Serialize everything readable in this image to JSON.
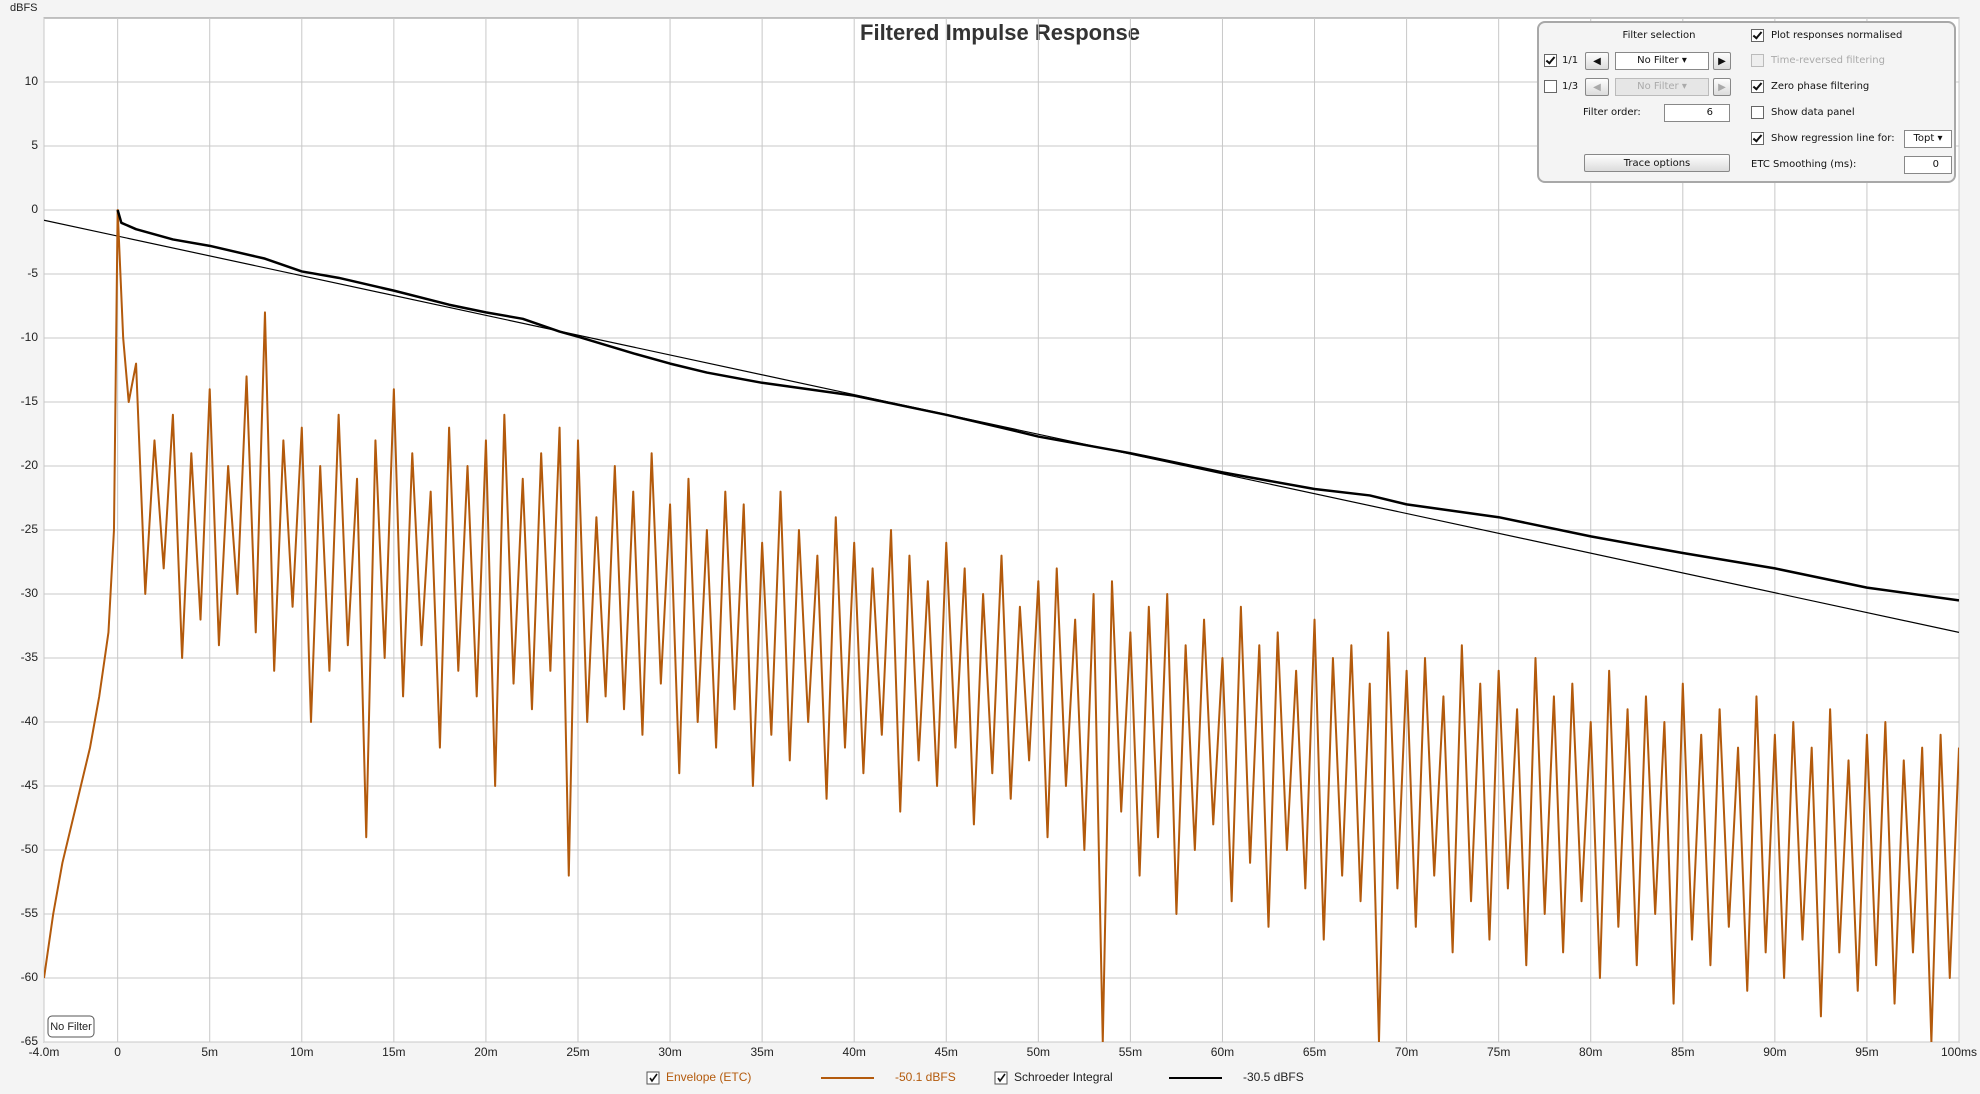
{
  "chart_data": {
    "type": "line",
    "title": "Filtered Impulse Response",
    "ylabel": "dBFS",
    "xlim": [
      -4,
      100
    ],
    "ylim": [
      -65,
      15
    ],
    "xticks": [
      {
        "value": -4,
        "label": "-4.0m"
      },
      0,
      {
        "value": 5,
        "label": "5m"
      },
      {
        "value": 10,
        "label": "10m"
      },
      {
        "value": 15,
        "label": "15m"
      },
      {
        "value": 20,
        "label": "20m"
      },
      {
        "value": 25,
        "label": "25m"
      },
      {
        "value": 30,
        "label": "30m"
      },
      {
        "value": 35,
        "label": "35m"
      },
      {
        "value": 40,
        "label": "40m"
      },
      {
        "value": 45,
        "label": "45m"
      },
      {
        "value": 50,
        "label": "50m"
      },
      {
        "value": 55,
        "label": "55m"
      },
      {
        "value": 60,
        "label": "60m"
      },
      {
        "value": 65,
        "label": "65m"
      },
      {
        "value": 70,
        "label": "70m"
      },
      {
        "value": 75,
        "label": "75m"
      },
      {
        "value": 80,
        "label": "80m"
      },
      {
        "value": 85,
        "label": "85m"
      },
      {
        "value": 90,
        "label": "90m"
      },
      {
        "value": 95,
        "label": "95m"
      },
      {
        "value": 100,
        "label": "100ms"
      }
    ],
    "yticks": [
      10,
      5,
      0,
      -5,
      -10,
      -15,
      -20,
      -25,
      -30,
      -35,
      -40,
      -45,
      -50,
      -55,
      -60,
      -65
    ],
    "grid": true,
    "plot_label": "No Filter",
    "series": [
      {
        "name": "Envelope (ETC)",
        "color": "#b35a0c",
        "legend_value": "-50.1 dBFS",
        "x": [
          -4,
          -3.5,
          -3,
          -2.5,
          -2,
          -1.5,
          -1,
          -0.5,
          -0.2,
          0,
          0.3,
          0.6,
          1,
          1.5,
          2,
          2.5,
          3,
          3.5,
          4,
          4.5,
          5,
          5.5,
          6,
          6.5,
          7,
          7.5,
          8,
          8.5,
          9,
          9.5,
          10,
          10.5,
          11,
          11.5,
          12,
          12.5,
          13,
          13.5,
          14,
          14.5,
          15,
          15.5,
          16,
          16.5,
          17,
          17.5,
          18,
          18.5,
          19,
          19.5,
          20,
          20.5,
          21,
          21.5,
          22,
          22.5,
          23,
          23.5,
          24,
          24.5,
          25,
          25.5,
          26,
          26.5,
          27,
          27.5,
          28,
          28.5,
          29,
          29.5,
          30,
          30.5,
          31,
          31.5,
          32,
          32.5,
          33,
          33.5,
          34,
          34.5,
          35,
          35.5,
          36,
          36.5,
          37,
          37.5,
          38,
          38.5,
          39,
          39.5,
          40,
          40.5,
          41,
          41.5,
          42,
          42.5,
          43,
          43.5,
          44,
          44.5,
          45,
          45.5,
          46,
          46.5,
          47,
          47.5,
          48,
          48.5,
          49,
          49.5,
          50,
          50.5,
          51,
          51.5,
          52,
          52.5,
          53,
          53.5,
          54,
          54.5,
          55,
          55.5,
          56,
          56.5,
          57,
          57.5,
          58,
          58.5,
          59,
          59.5,
          60,
          60.5,
          61,
          61.5,
          62,
          62.5,
          63,
          63.5,
          64,
          64.5,
          65,
          65.5,
          66,
          66.5,
          67,
          67.5,
          68,
          68.5,
          69,
          69.5,
          70,
          70.5,
          71,
          71.5,
          72,
          72.5,
          73,
          73.5,
          74,
          74.5,
          75,
          75.5,
          76,
          76.5,
          77,
          77.5,
          78,
          78.5,
          79,
          79.5,
          80,
          80.5,
          81,
          81.5,
          82,
          82.5,
          83,
          83.5,
          84,
          84.5,
          85,
          85.5,
          86,
          86.5,
          87,
          87.5,
          88,
          88.5,
          89,
          89.5,
          90,
          90.5,
          91,
          91.5,
          92,
          92.5,
          93,
          93.5,
          94,
          94.5,
          95,
          95.5,
          96,
          96.5,
          97,
          97.5,
          98,
          98.5,
          99,
          99.5,
          100
        ],
        "values": [
          -60,
          -55,
          -51,
          -48,
          -45,
          -42,
          -38,
          -33,
          -25,
          0,
          -10,
          -15,
          -12,
          -30,
          -18,
          -28,
          -16,
          -35,
          -19,
          -32,
          -14,
          -34,
          -20,
          -30,
          -13,
          -33,
          -8,
          -36,
          -18,
          -31,
          -17,
          -40,
          -20,
          -36,
          -16,
          -34,
          -21,
          -49,
          -18,
          -35,
          -14,
          -38,
          -19,
          -34,
          -22,
          -42,
          -17,
          -36,
          -20,
          -38,
          -18,
          -45,
          -16,
          -37,
          -21,
          -39,
          -19,
          -36,
          -17,
          -52,
          -18,
          -40,
          -24,
          -38,
          -20,
          -39,
          -22,
          -41,
          -19,
          -37,
          -23,
          -44,
          -21,
          -40,
          -25,
          -42,
          -22,
          -39,
          -23,
          -45,
          -26,
          -41,
          -22,
          -43,
          -25,
          -40,
          -27,
          -46,
          -24,
          -42,
          -26,
          -44,
          -28,
          -41,
          -25,
          -47,
          -27,
          -43,
          -29,
          -45,
          -26,
          -42,
          -28,
          -48,
          -30,
          -44,
          -27,
          -46,
          -31,
          -43,
          -29,
          -49,
          -28,
          -45,
          -32,
          -50,
          -30,
          -65,
          -29,
          -47,
          -33,
          -52,
          -31,
          -49,
          -30,
          -55,
          -34,
          -50,
          -32,
          -48,
          -35,
          -54,
          -31,
          -51,
          -34,
          -56,
          -33,
          -50,
          -36,
          -53,
          -32,
          -57,
          -35,
          -52,
          -34,
          -54,
          -37,
          -65,
          -33,
          -53,
          -36,
          -56,
          -35,
          -52,
          -38,
          -58,
          -34,
          -54,
          -37,
          -57,
          -36,
          -53,
          -39,
          -59,
          -35,
          -55,
          -38,
          -58,
          -37,
          -54,
          -40,
          -60,
          -36,
          -56,
          -39,
          -59,
          -38,
          -55,
          -40,
          -62,
          -37,
          -57,
          -41,
          -59,
          -39,
          -56,
          -42,
          -61,
          -38,
          -58,
          -41,
          -60,
          -40,
          -57,
          -42,
          -63,
          -39,
          -58,
          -43,
          -61,
          -41,
          -59,
          -40,
          -62,
          -43,
          -58,
          -42,
          -65,
          -41,
          -60,
          -42
        ]
      },
      {
        "name": "Schroeder Integral",
        "color": "#000000",
        "legend_value": "-30.5 dBFS",
        "x": [
          0,
          0.2,
          1,
          3,
          5,
          8,
          10,
          12,
          15,
          18,
          20,
          22,
          24,
          25,
          28,
          30,
          32,
          35,
          40,
          45,
          48,
          50,
          55,
          60,
          65,
          68,
          70,
          75,
          80,
          85,
          90,
          95,
          100
        ],
        "values": [
          0,
          -1,
          -1.5,
          -2.3,
          -2.8,
          -3.8,
          -4.8,
          -5.3,
          -6.3,
          -7.4,
          -8,
          -8.5,
          -9.5,
          -9.9,
          -11.2,
          -12,
          -12.7,
          -13.5,
          -14.5,
          -16,
          -17,
          -17.7,
          -19,
          -20.5,
          -21.8,
          -22.3,
          -23,
          -24,
          -25.5,
          -26.8,
          -28,
          -29.5,
          -30.5
        ]
      }
    ],
    "regression": {
      "color": "#000000",
      "x": [
        -4,
        100
      ],
      "values": [
        -0.8,
        -33
      ]
    }
  },
  "panel": {
    "filter_selection": "Filter selection",
    "row1": {
      "label": "1/1",
      "filter": "No Filter"
    },
    "row2": {
      "label": "1/3",
      "filter": "No Filter"
    },
    "filter_order_label": "Filter order:",
    "filter_order": "6",
    "trace_options": "Trace options",
    "plot_normalised": "Plot responses normalised",
    "time_reversed": "Time-reversed filtering",
    "zero_phase": "Zero phase filtering",
    "show_data_panel": "Show data panel",
    "show_regression": "Show regression line for:",
    "regression_choice": "Topt",
    "etc_smoothing_label": "ETC Smoothing (ms):",
    "etc_smoothing": "0"
  }
}
